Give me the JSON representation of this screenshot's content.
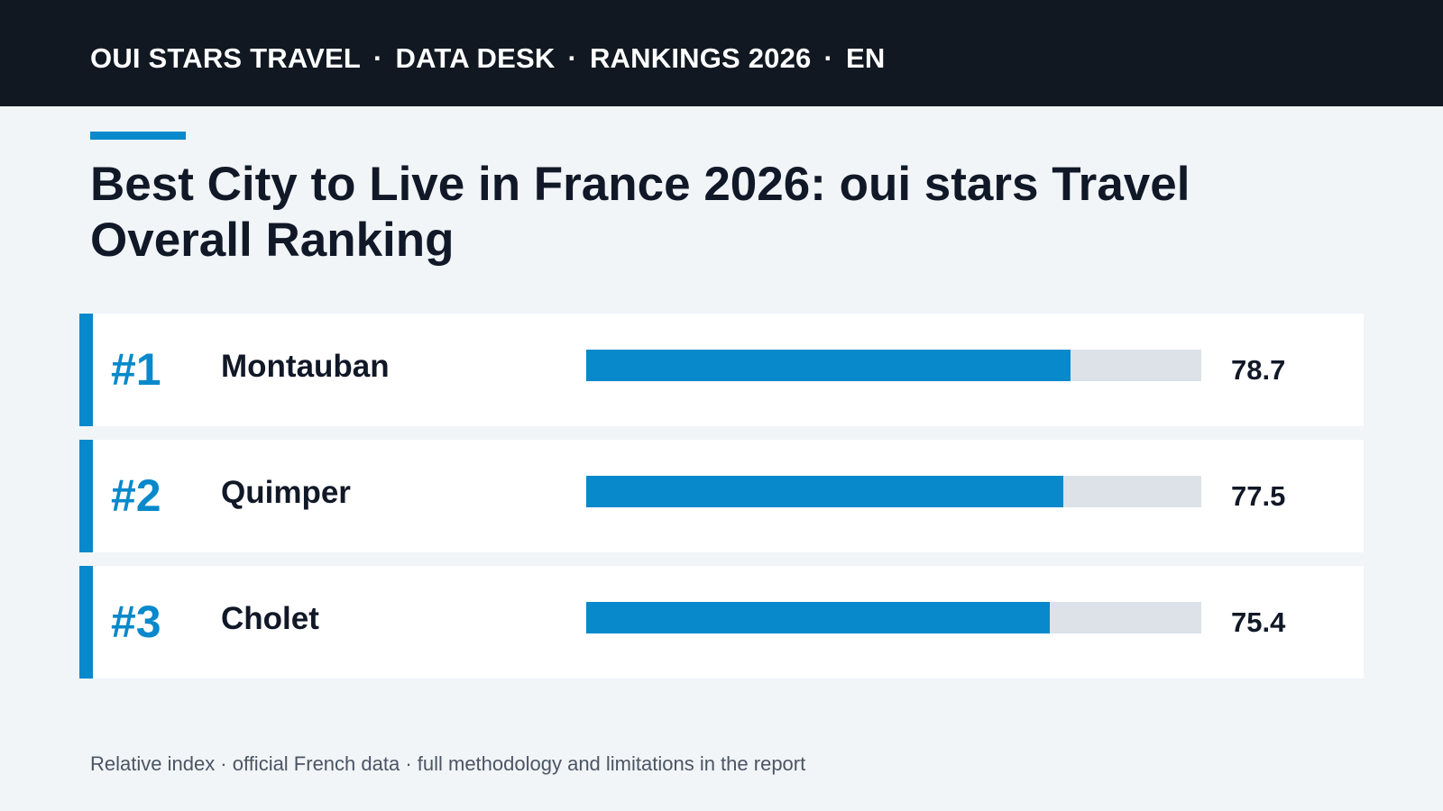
{
  "nav": {
    "items": [
      "OUI STARS TRAVEL",
      "DATA DESK",
      "RANKINGS 2026",
      "EN"
    ],
    "separator": "·"
  },
  "colors": {
    "accent": "#0789cb",
    "header_bg": "#111821",
    "track": "#dce2e8"
  },
  "chart_data": {
    "type": "bar",
    "title": "Best City to Live in France 2026: oui stars Travel Overall Ranking",
    "xlabel": "",
    "ylabel": "",
    "ylim": [
      0,
      100
    ],
    "categories": [
      "Montauban",
      "Quimper",
      "Cholet"
    ],
    "ranks": [
      "#1",
      "#2",
      "#3"
    ],
    "values": [
      78.7,
      77.5,
      75.4
    ],
    "value_labels": [
      "78.7",
      "77.5",
      "75.4"
    ]
  },
  "footnote": "Relative index · official French data · full methodology and limitations in the report"
}
